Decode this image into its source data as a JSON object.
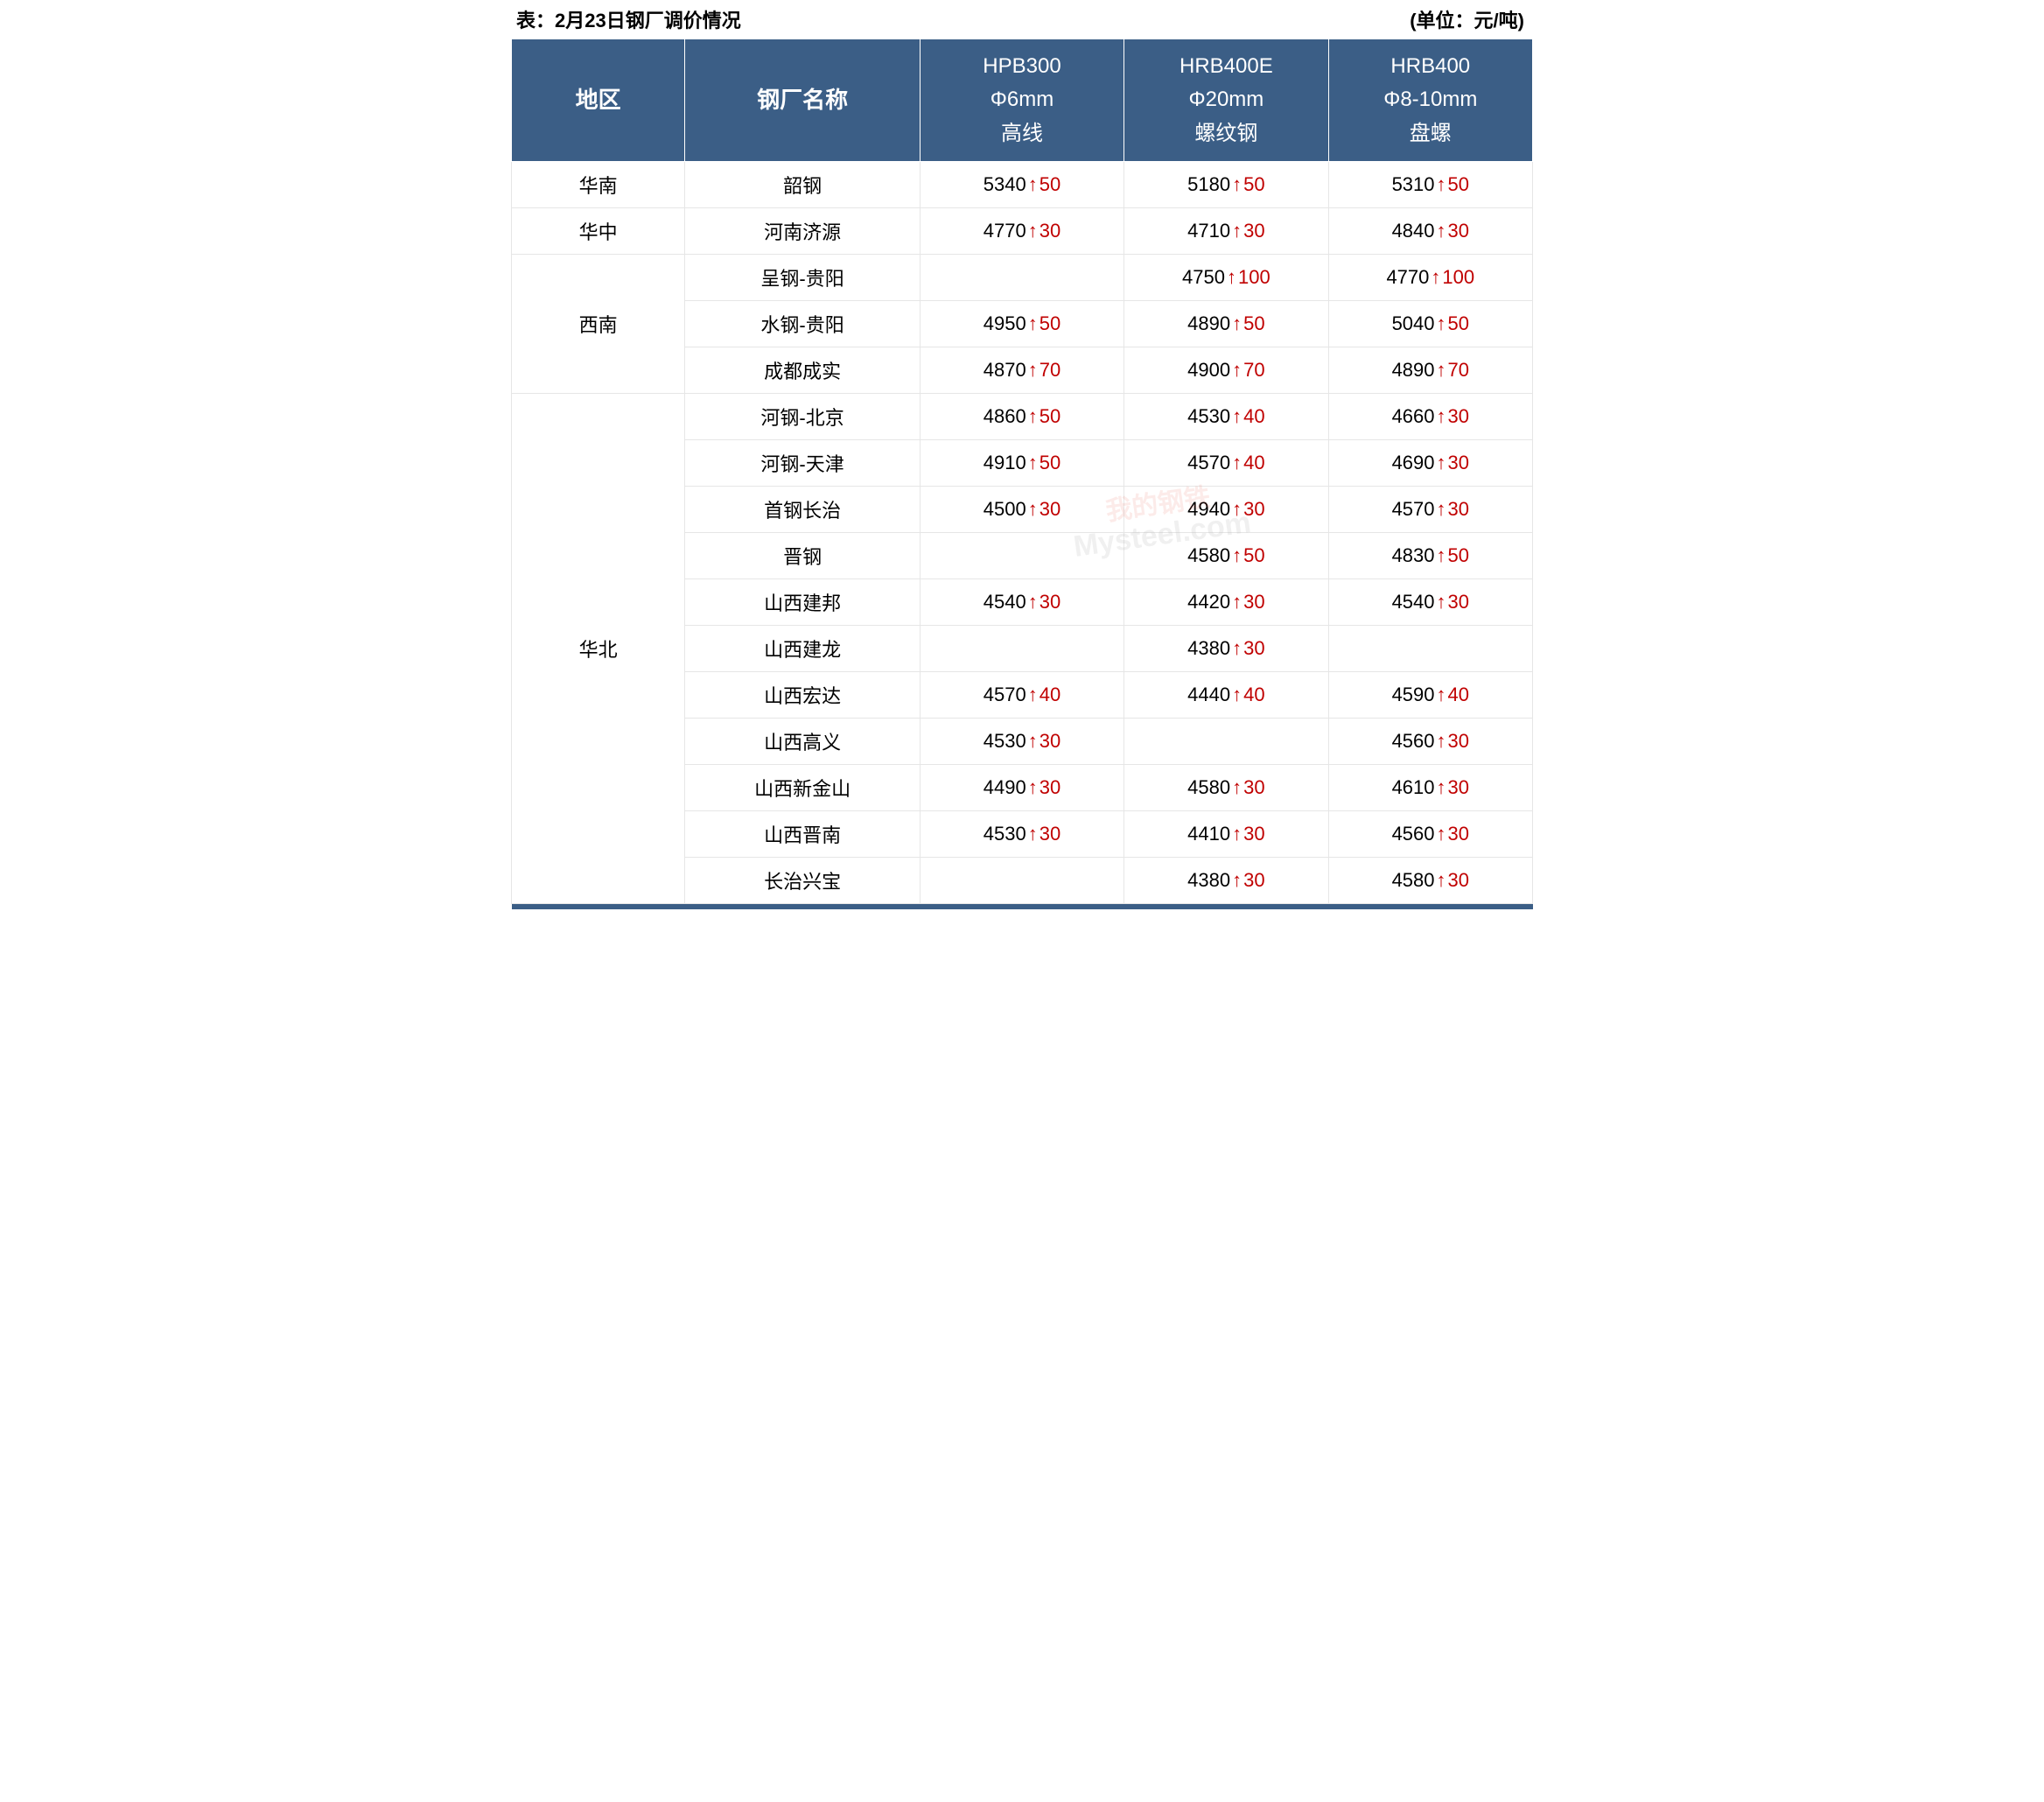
{
  "caption": {
    "left": "表：2月23日钢厂调价情况",
    "right": "(单位：元/吨)"
  },
  "colors": {
    "header_bg": "#3b5e86",
    "header_fg": "#ffffff",
    "border": "#e6e6e6",
    "up_color": "#c00000",
    "text": "#000000"
  },
  "columns": {
    "region": "地区",
    "mill": "钢厂名称",
    "p1": {
      "l1": "HPB300",
      "l2": "Φ6mm",
      "l3": "高线"
    },
    "p2": {
      "l1": "HRB400E",
      "l2": "Φ20mm",
      "l3": "螺纹钢"
    },
    "p3": {
      "l1": "HRB400",
      "l2": "Φ8-10mm",
      "l3": "盘螺"
    }
  },
  "regions": [
    {
      "name": "华南",
      "rows": [
        {
          "mill": "韶钢",
          "p1": {
            "v": 5340,
            "d": 50
          },
          "p2": {
            "v": 5180,
            "d": 50
          },
          "p3": {
            "v": 5310,
            "d": 50
          }
        }
      ]
    },
    {
      "name": "华中",
      "rows": [
        {
          "mill": "河南济源",
          "p1": {
            "v": 4770,
            "d": 30
          },
          "p2": {
            "v": 4710,
            "d": 30
          },
          "p3": {
            "v": 4840,
            "d": 30
          }
        }
      ]
    },
    {
      "name": "西南",
      "rows": [
        {
          "mill": "呈钢-贵阳",
          "p1": null,
          "p2": {
            "v": 4750,
            "d": 100
          },
          "p3": {
            "v": 4770,
            "d": 100
          }
        },
        {
          "mill": "水钢-贵阳",
          "p1": {
            "v": 4950,
            "d": 50
          },
          "p2": {
            "v": 4890,
            "d": 50
          },
          "p3": {
            "v": 5040,
            "d": 50
          }
        },
        {
          "mill": "成都成实",
          "p1": {
            "v": 4870,
            "d": 70
          },
          "p2": {
            "v": 4900,
            "d": 70
          },
          "p3": {
            "v": 4890,
            "d": 70
          }
        }
      ]
    },
    {
      "name": "华北",
      "rows": [
        {
          "mill": "河钢-北京",
          "p1": {
            "v": 4860,
            "d": 50
          },
          "p2": {
            "v": 4530,
            "d": 40
          },
          "p3": {
            "v": 4660,
            "d": 30
          }
        },
        {
          "mill": "河钢-天津",
          "p1": {
            "v": 4910,
            "d": 50
          },
          "p2": {
            "v": 4570,
            "d": 40
          },
          "p3": {
            "v": 4690,
            "d": 30
          }
        },
        {
          "mill": "首钢长治",
          "p1": {
            "v": 4500,
            "d": 30
          },
          "p2": {
            "v": 4940,
            "d": 30
          },
          "p3": {
            "v": 4570,
            "d": 30
          }
        },
        {
          "mill": "晋钢",
          "p1": null,
          "p2": {
            "v": 4580,
            "d": 50
          },
          "p3": {
            "v": 4830,
            "d": 50
          }
        },
        {
          "mill": "山西建邦",
          "p1": {
            "v": 4540,
            "d": 30
          },
          "p2": {
            "v": 4420,
            "d": 30
          },
          "p3": {
            "v": 4540,
            "d": 30
          }
        },
        {
          "mill": "山西建龙",
          "p1": null,
          "p2": {
            "v": 4380,
            "d": 30
          },
          "p3": null
        },
        {
          "mill": "山西宏达",
          "p1": {
            "v": 4570,
            "d": 40
          },
          "p2": {
            "v": 4440,
            "d": 40
          },
          "p3": {
            "v": 4590,
            "d": 40
          }
        },
        {
          "mill": "山西高义",
          "p1": {
            "v": 4530,
            "d": 30
          },
          "p2": null,
          "p3": {
            "v": 4560,
            "d": 30
          }
        },
        {
          "mill": "山西新金山",
          "p1": {
            "v": 4490,
            "d": 30
          },
          "p2": {
            "v": 4580,
            "d": 30
          },
          "p3": {
            "v": 4610,
            "d": 30
          }
        },
        {
          "mill": "山西晋南",
          "p1": {
            "v": 4530,
            "d": 30
          },
          "p2": {
            "v": 4410,
            "d": 30
          },
          "p3": {
            "v": 4560,
            "d": 30
          }
        },
        {
          "mill": "长治兴宝",
          "p1": null,
          "p2": {
            "v": 4380,
            "d": 30
          },
          "p3": {
            "v": 4580,
            "d": 30
          }
        }
      ]
    }
  ],
  "watermark": {
    "cn": "我的钢铁",
    "en": "Mysteel.com"
  }
}
